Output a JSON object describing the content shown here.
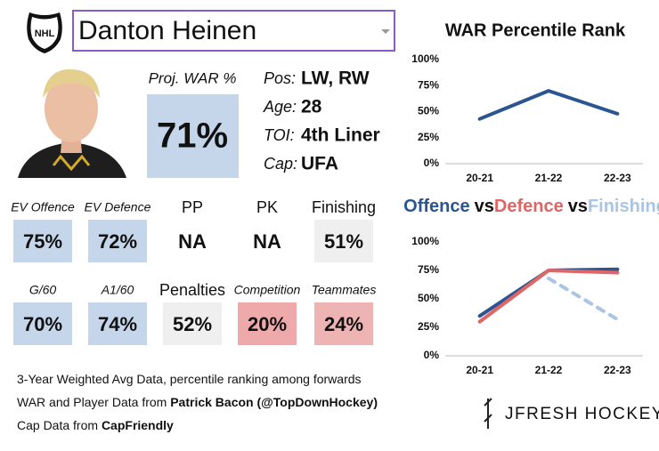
{
  "header": {
    "league": "NHL",
    "player": "Danton Heinen"
  },
  "proj_war": {
    "label": "Proj. WAR %",
    "value": "71%",
    "color": "#c5d5ea"
  },
  "bio": [
    {
      "label": "Pos:",
      "value": "LW, RW"
    },
    {
      "label": "Age:",
      "value": "28"
    },
    {
      "label": "TOI:",
      "value": "4th Liner"
    },
    {
      "label": "Cap:",
      "value": "UFA"
    }
  ],
  "tiles": [
    {
      "label": "EV Offence",
      "value": "75%",
      "color": "#c5d5ea",
      "italic": true
    },
    {
      "label": "EV Defence",
      "value": "72%",
      "color": "#c5d5ea",
      "italic": true
    },
    {
      "label": "PP",
      "value": "NA",
      "color": "#ffffff",
      "italic": false
    },
    {
      "label": "PK",
      "value": "NA",
      "color": "#ffffff",
      "italic": false
    },
    {
      "label": "Finishing",
      "value": "51%",
      "color": "#efefef",
      "italic": false
    },
    {
      "label": "G/60",
      "value": "70%",
      "color": "#c5d5ea",
      "italic": true
    },
    {
      "label": "A1/60",
      "value": "74%",
      "color": "#c5d5ea",
      "italic": true
    },
    {
      "label": "Penalties",
      "value": "52%",
      "color": "#efefef",
      "italic": false
    },
    {
      "label": "Competition",
      "value": "20%",
      "color": "#eeaaaa",
      "italic": true
    },
    {
      "label": "Teammates",
      "value": "24%",
      "color": "#eeb4b4",
      "italic": true
    }
  ],
  "footer": {
    "line1": "3-Year Weighted Avg Data, percentile ranking among forwards",
    "line2": "WAR and Player Data from ",
    "line2_bold": "Patrick Bacon (@TopDownHockey)",
    "line3": "Cap Data from ",
    "line3_bold": "CapFriendly",
    "brand": "JFRESH HOCKEY"
  },
  "chart_data": [
    {
      "type": "line",
      "title": "WAR Percentile Rank",
      "categories": [
        "20-21",
        "21-22",
        "22-23"
      ],
      "series": [
        {
          "name": "WAR",
          "color": "#2b5590",
          "dash": false,
          "values": [
            43,
            70,
            48
          ]
        }
      ],
      "ylim": [
        0,
        100
      ],
      "yticks": [
        {
          "value": 0,
          "label": "0%"
        },
        {
          "value": 25,
          "label": "25%"
        },
        {
          "value": 50,
          "label": "50%"
        },
        {
          "value": 75,
          "label": "75%"
        },
        {
          "value": 100,
          "label": "100%"
        }
      ],
      "grid": false
    },
    {
      "type": "line",
      "legend_separator": "vs",
      "categories": [
        "20-21",
        "21-22",
        "22-23"
      ],
      "series": [
        {
          "name": "Offence",
          "color": "#2b5590",
          "dash": false,
          "values": [
            35,
            75,
            76
          ]
        },
        {
          "name": "Defence",
          "color": "#e06666",
          "dash": false,
          "values": [
            30,
            75,
            73
          ]
        },
        {
          "name": "Finishing",
          "color": "#a9c4e4",
          "dash": true,
          "values": [
            null,
            68,
            32
          ]
        }
      ],
      "ylim": [
        0,
        100
      ],
      "yticks": [
        {
          "value": 0,
          "label": "0%"
        },
        {
          "value": 25,
          "label": "25%"
        },
        {
          "value": 50,
          "label": "50%"
        },
        {
          "value": 75,
          "label": "75%"
        },
        {
          "value": 100,
          "label": "100%"
        }
      ],
      "grid": false
    }
  ]
}
